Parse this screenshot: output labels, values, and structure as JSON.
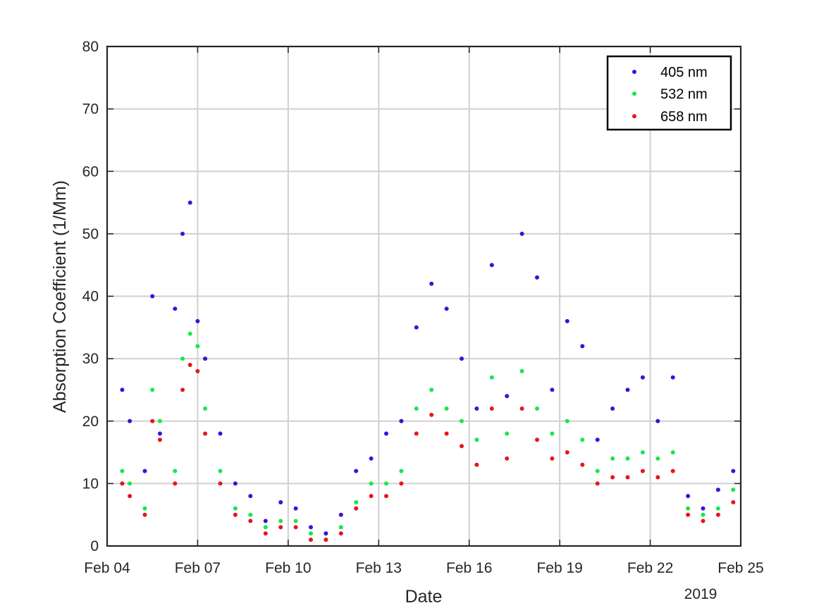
{
  "chart_data": {
    "type": "scatter",
    "xlabel": "Date",
    "ylabel": "Absorption Coefficient (1/Mm)",
    "year_label": "2019",
    "x_range": [
      "2019-02-04",
      "2019-02-25"
    ],
    "ylim": [
      0,
      80
    ],
    "x_ticks": [
      {
        "date": "2019-02-04",
        "label": "Feb 04"
      },
      {
        "date": "2019-02-07",
        "label": "Feb 07"
      },
      {
        "date": "2019-02-10",
        "label": "Feb 10"
      },
      {
        "date": "2019-02-13",
        "label": "Feb 13"
      },
      {
        "date": "2019-02-16",
        "label": "Feb 16"
      },
      {
        "date": "2019-02-19",
        "label": "Feb 19"
      },
      {
        "date": "2019-02-22",
        "label": "Feb 22"
      },
      {
        "date": "2019-02-25",
        "label": "Feb 25"
      }
    ],
    "y_ticks": [
      {
        "value": 0,
        "label": "0"
      },
      {
        "value": 10,
        "label": "10"
      },
      {
        "value": 20,
        "label": "20"
      },
      {
        "value": 30,
        "label": "30"
      },
      {
        "value": 40,
        "label": "40"
      },
      {
        "value": 50,
        "label": "50"
      },
      {
        "value": 60,
        "label": "60"
      },
      {
        "value": 70,
        "label": "70"
      },
      {
        "value": 80,
        "label": "80"
      }
    ],
    "grid": true,
    "legend_position": "top-right",
    "series": [
      {
        "name": "405 nm",
        "color": "#3b12d8",
        "x": [
          "2019-02-04 12:00",
          "2019-02-04 18:00",
          "2019-02-05 06:00",
          "2019-02-05 12:00",
          "2019-02-05 18:00",
          "2019-02-06 06:00",
          "2019-02-06 12:00",
          "2019-02-06 18:00",
          "2019-02-07 00:00",
          "2019-02-07 06:00",
          "2019-02-07 18:00",
          "2019-02-08 06:00",
          "2019-02-08 18:00",
          "2019-02-09 06:00",
          "2019-02-09 18:00",
          "2019-02-10 06:00",
          "2019-02-10 18:00",
          "2019-02-11 06:00",
          "2019-02-11 18:00",
          "2019-02-12 06:00",
          "2019-02-12 18:00",
          "2019-02-13 06:00",
          "2019-02-13 18:00",
          "2019-02-14 06:00",
          "2019-02-14 18:00",
          "2019-02-15 06:00",
          "2019-02-15 18:00",
          "2019-02-16 06:00",
          "2019-02-16 18:00",
          "2019-02-17 06:00",
          "2019-02-17 18:00",
          "2019-02-18 06:00",
          "2019-02-18 18:00",
          "2019-02-19 06:00",
          "2019-02-19 18:00",
          "2019-02-20 06:00",
          "2019-02-20 18:00",
          "2019-02-21 06:00",
          "2019-02-21 18:00",
          "2019-02-22 06:00",
          "2019-02-22 18:00",
          "2019-02-23 06:00",
          "2019-02-23 18:00",
          "2019-02-24 06:00",
          "2019-02-24 18:00"
        ],
        "values": [
          25,
          20,
          12,
          40,
          18,
          38,
          50,
          55,
          36,
          30,
          18,
          10,
          8,
          4,
          7,
          6,
          3,
          2,
          5,
          12,
          14,
          18,
          20,
          35,
          42,
          38,
          30,
          22,
          45,
          24,
          50,
          43,
          25,
          36,
          32,
          17,
          22,
          25,
          27,
          20,
          27,
          8,
          6,
          9,
          12
        ]
      },
      {
        "name": "532 nm",
        "color": "#16e84a",
        "x": [
          "2019-02-04 12:00",
          "2019-02-04 18:00",
          "2019-02-05 06:00",
          "2019-02-05 12:00",
          "2019-02-05 18:00",
          "2019-02-06 06:00",
          "2019-02-06 12:00",
          "2019-02-06 18:00",
          "2019-02-07 00:00",
          "2019-02-07 06:00",
          "2019-02-07 18:00",
          "2019-02-08 06:00",
          "2019-02-08 18:00",
          "2019-02-09 06:00",
          "2019-02-09 18:00",
          "2019-02-10 06:00",
          "2019-02-10 18:00",
          "2019-02-11 06:00",
          "2019-02-11 18:00",
          "2019-02-12 06:00",
          "2019-02-12 18:00",
          "2019-02-13 06:00",
          "2019-02-13 18:00",
          "2019-02-14 06:00",
          "2019-02-14 18:00",
          "2019-02-15 06:00",
          "2019-02-15 18:00",
          "2019-02-16 06:00",
          "2019-02-16 18:00",
          "2019-02-17 06:00",
          "2019-02-17 18:00",
          "2019-02-18 06:00",
          "2019-02-18 18:00",
          "2019-02-19 06:00",
          "2019-02-19 18:00",
          "2019-02-20 06:00",
          "2019-02-20 18:00",
          "2019-02-21 06:00",
          "2019-02-21 18:00",
          "2019-02-22 06:00",
          "2019-02-22 18:00",
          "2019-02-23 06:00",
          "2019-02-23 18:00",
          "2019-02-24 06:00",
          "2019-02-24 18:00"
        ],
        "values": [
          12,
          10,
          6,
          25,
          20,
          12,
          30,
          34,
          32,
          22,
          12,
          6,
          5,
          3,
          4,
          4,
          2,
          1,
          3,
          7,
          10,
          10,
          12,
          22,
          25,
          22,
          20,
          17,
          27,
          18,
          28,
          22,
          18,
          20,
          17,
          12,
          14,
          14,
          15,
          14,
          15,
          6,
          5,
          6,
          9
        ]
      },
      {
        "name": "658 nm",
        "color": "#e8141e",
        "x": [
          "2019-02-04 12:00",
          "2019-02-04 18:00",
          "2019-02-05 06:00",
          "2019-02-05 12:00",
          "2019-02-05 18:00",
          "2019-02-06 06:00",
          "2019-02-06 12:00",
          "2019-02-06 18:00",
          "2019-02-07 00:00",
          "2019-02-07 06:00",
          "2019-02-07 18:00",
          "2019-02-08 06:00",
          "2019-02-08 18:00",
          "2019-02-09 06:00",
          "2019-02-09 18:00",
          "2019-02-10 06:00",
          "2019-02-10 18:00",
          "2019-02-11 06:00",
          "2019-02-11 18:00",
          "2019-02-12 06:00",
          "2019-02-12 18:00",
          "2019-02-13 06:00",
          "2019-02-13 18:00",
          "2019-02-14 06:00",
          "2019-02-14 18:00",
          "2019-02-15 06:00",
          "2019-02-15 18:00",
          "2019-02-16 06:00",
          "2019-02-16 18:00",
          "2019-02-17 06:00",
          "2019-02-17 18:00",
          "2019-02-18 06:00",
          "2019-02-18 18:00",
          "2019-02-19 06:00",
          "2019-02-19 18:00",
          "2019-02-20 06:00",
          "2019-02-20 18:00",
          "2019-02-21 06:00",
          "2019-02-21 18:00",
          "2019-02-22 06:00",
          "2019-02-22 18:00",
          "2019-02-23 06:00",
          "2019-02-23 18:00",
          "2019-02-24 06:00",
          "2019-02-24 18:00"
        ],
        "values": [
          10,
          8,
          5,
          20,
          17,
          10,
          25,
          29,
          28,
          18,
          10,
          5,
          4,
          2,
          3,
          3,
          1,
          1,
          2,
          6,
          8,
          8,
          10,
          18,
          21,
          18,
          16,
          13,
          22,
          14,
          22,
          17,
          14,
          15,
          13,
          10,
          11,
          11,
          12,
          11,
          12,
          5,
          4,
          5,
          7
        ]
      }
    ]
  }
}
